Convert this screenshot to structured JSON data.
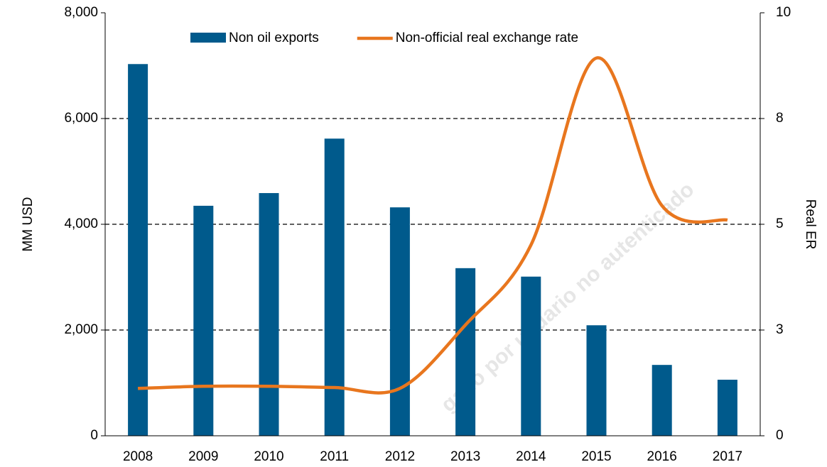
{
  "chart_data": {
    "type": "bar",
    "categories": [
      "2008",
      "2009",
      "2010",
      "2011",
      "2012",
      "2013",
      "2014",
      "2015",
      "2016",
      "2017"
    ],
    "series": [
      {
        "name": "Non oil exports",
        "color": "#005a8c",
        "values": [
          7030,
          4350,
          4590,
          5620,
          4320,
          3170,
          3010,
          2090,
          1340,
          1060
        ]
      },
      {
        "name": "Non-official real exchange rate",
        "color": "#e8761e",
        "type": "line",
        "axis": "y2",
        "values": [
          1.12,
          1.17,
          1.17,
          1.14,
          1.12,
          2.62,
          4.51,
          8.93,
          5.44,
          5.1
        ]
      }
    ],
    "ylabel": "MM USD",
    "y2label": "Real ER",
    "ylim": [
      0,
      8000
    ],
    "yticks": [
      0,
      {
        "value": 2000,
        "label": "2,000"
      },
      {
        "value": 4000,
        "label": "4,000"
      },
      {
        "value": 6000,
        "label": "6,000"
      },
      {
        "value": 8000,
        "label": "8,000"
      }
    ],
    "y2lim": [
      0,
      10
    ],
    "y2ticks": [
      0,
      {
        "value": 2.5,
        "label": "3"
      },
      5,
      {
        "value": 7.5,
        "label": "8"
      },
      10
    ],
    "grid": true,
    "legend": "top",
    "watermark": "gado por usuario no autenticado"
  }
}
